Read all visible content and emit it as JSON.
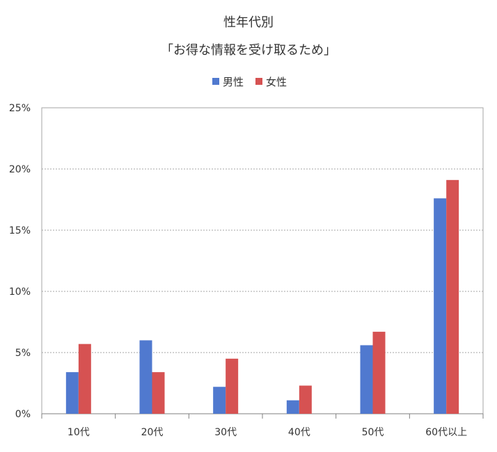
{
  "chart_data": {
    "type": "bar",
    "title": "性年代別",
    "subtitle": "「お得な情報を受け取るため」",
    "categories": [
      "10代",
      "20代",
      "30代",
      "40代",
      "50代",
      "60代以上"
    ],
    "series": [
      {
        "name": "男性",
        "color": "#5079CF",
        "values": [
          3.4,
          6.0,
          2.2,
          1.1,
          5.6,
          17.6
        ]
      },
      {
        "name": "女性",
        "color": "#D65252",
        "values": [
          5.7,
          3.4,
          4.5,
          2.3,
          6.7,
          19.1
        ]
      }
    ],
    "yticks": [
      "0%",
      "5%",
      "10%",
      "15%",
      "20%",
      "25%"
    ],
    "ylim": [
      0,
      25
    ],
    "grid": true,
    "legend_position": "top-center"
  }
}
